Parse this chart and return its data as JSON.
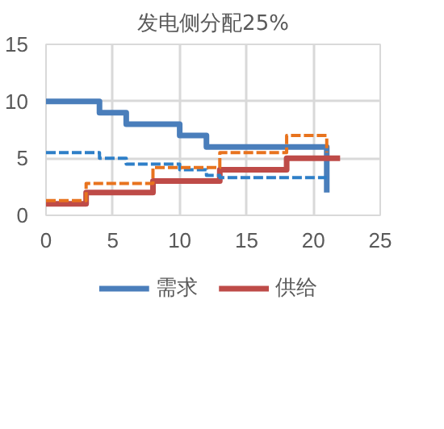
{
  "chart_data": {
    "type": "step",
    "title": "发电侧分配25%",
    "xlim": [
      0,
      25
    ],
    "ylim": [
      0,
      15
    ],
    "xticks": [
      0,
      5,
      10,
      15,
      20,
      25
    ],
    "yticks": [
      0,
      5,
      10,
      15
    ],
    "grid": true,
    "legend": "bottom",
    "series": [
      {
        "name": "需求",
        "color": "#4a7ebb",
        "line_style": "solid",
        "x": [
          0,
          4,
          6,
          10,
          12,
          21,
          21
        ],
        "values": [
          10,
          9,
          8,
          7,
          6,
          6,
          2
        ]
      },
      {
        "name": "供给",
        "color": "#be4b48",
        "line_style": "solid",
        "x": [
          0,
          3,
          8,
          13,
          18,
          22
        ],
        "values": [
          1,
          2,
          3,
          4,
          5,
          5
        ]
      },
      {
        "color": "#2e7fc8",
        "line_style": "dashed",
        "x": [
          0,
          4,
          6,
          10,
          12,
          13,
          21
        ],
        "values": [
          5.5,
          5,
          4.5,
          4,
          3.5,
          3.3,
          3.3
        ]
      },
      {
        "color": "#e8731e",
        "line_style": "dashed",
        "x": [
          0,
          3,
          8,
          13,
          18,
          21,
          21
        ],
        "values": [
          1.3,
          2.8,
          4.2,
          5.5,
          7,
          7,
          5.5
        ]
      }
    ]
  }
}
